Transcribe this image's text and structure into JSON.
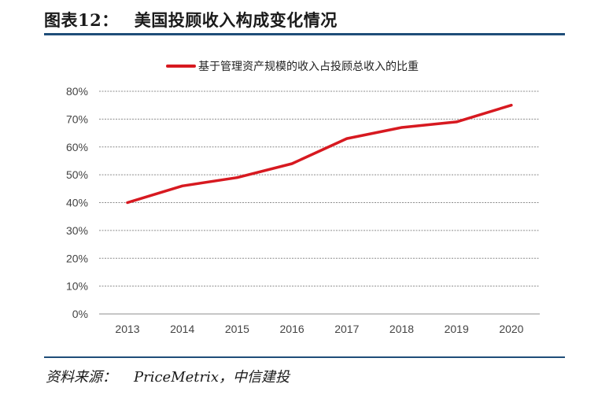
{
  "figure": {
    "label": "图表12：",
    "title": "美国投顾收入构成变化情况",
    "source_label": "资料来源：",
    "source_text": "PriceMetrix，中信建投"
  },
  "colors": {
    "line": "#d71920",
    "rule": "#1f4e79",
    "grid": "#8c8c8c",
    "tick": "#444444"
  },
  "chart_data": {
    "type": "line",
    "title": "",
    "xlabel": "",
    "ylabel": "",
    "x": [
      "2013",
      "2014",
      "2015",
      "2016",
      "2017",
      "2018",
      "2019",
      "2020"
    ],
    "series": [
      {
        "name": "基于管理资产规模的收入占投顾总收入的比重",
        "values": [
          40,
          46,
          49,
          54,
          63,
          67,
          69,
          75
        ],
        "color": "#d71920"
      }
    ],
    "ylim": [
      0,
      80
    ],
    "yticks": [
      0,
      10,
      20,
      30,
      40,
      50,
      60,
      70,
      80
    ],
    "ytick_labels": [
      "0%",
      "10%",
      "20%",
      "30%",
      "40%",
      "50%",
      "60%",
      "70%",
      "80%"
    ],
    "grid": true,
    "legend_position": "top-center"
  }
}
